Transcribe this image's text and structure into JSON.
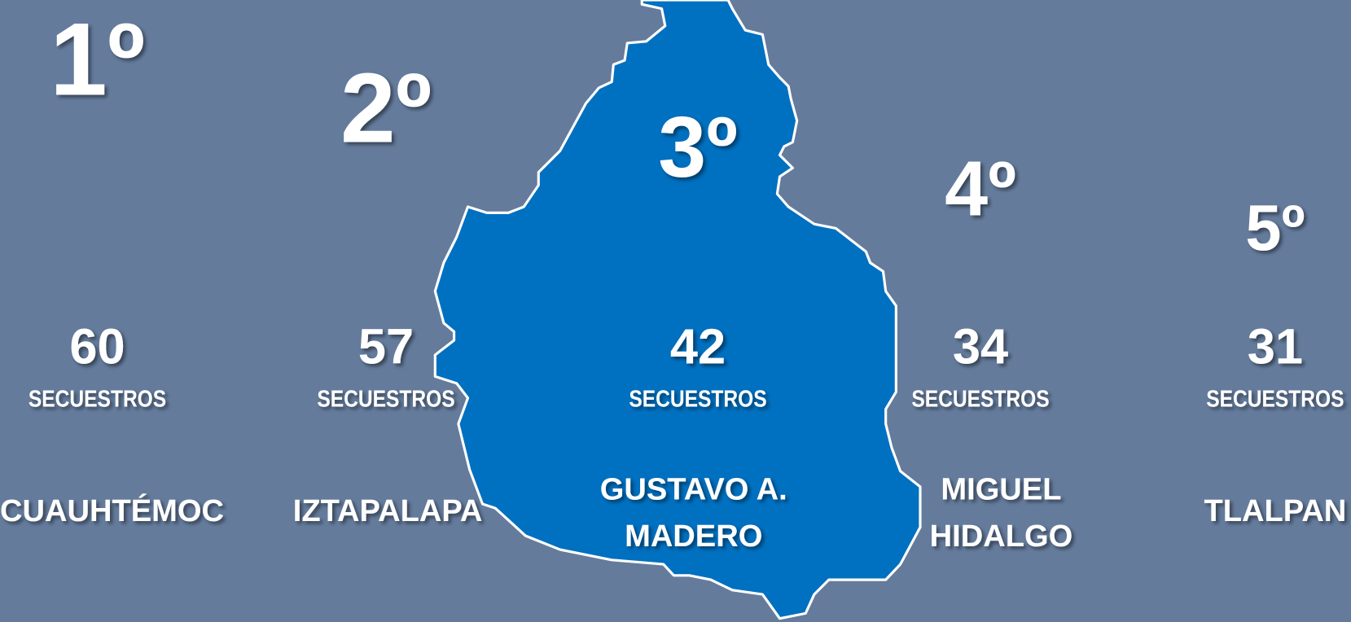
{
  "items": [
    {
      "rank": "1º",
      "value": 60,
      "unit": "SECUESTROS",
      "name": [
        "CUAUHTÉMOC"
      ]
    },
    {
      "rank": "2º",
      "value": 57,
      "unit": "SECUESTROS",
      "name": [
        "IZTAPALAPA"
      ]
    },
    {
      "rank": "3º",
      "value": 42,
      "unit": "SECUESTROS",
      "name": [
        "GUSTAVO A.",
        "MADERO"
      ]
    },
    {
      "rank": "4º",
      "value": 34,
      "unit": "SECUESTROS",
      "name": [
        "MIGUEL",
        "HIDALGO"
      ]
    },
    {
      "rank": "5º",
      "value": 31,
      "unit": "SECUESTROS",
      "name": [
        "TLALPAN"
      ]
    }
  ]
}
